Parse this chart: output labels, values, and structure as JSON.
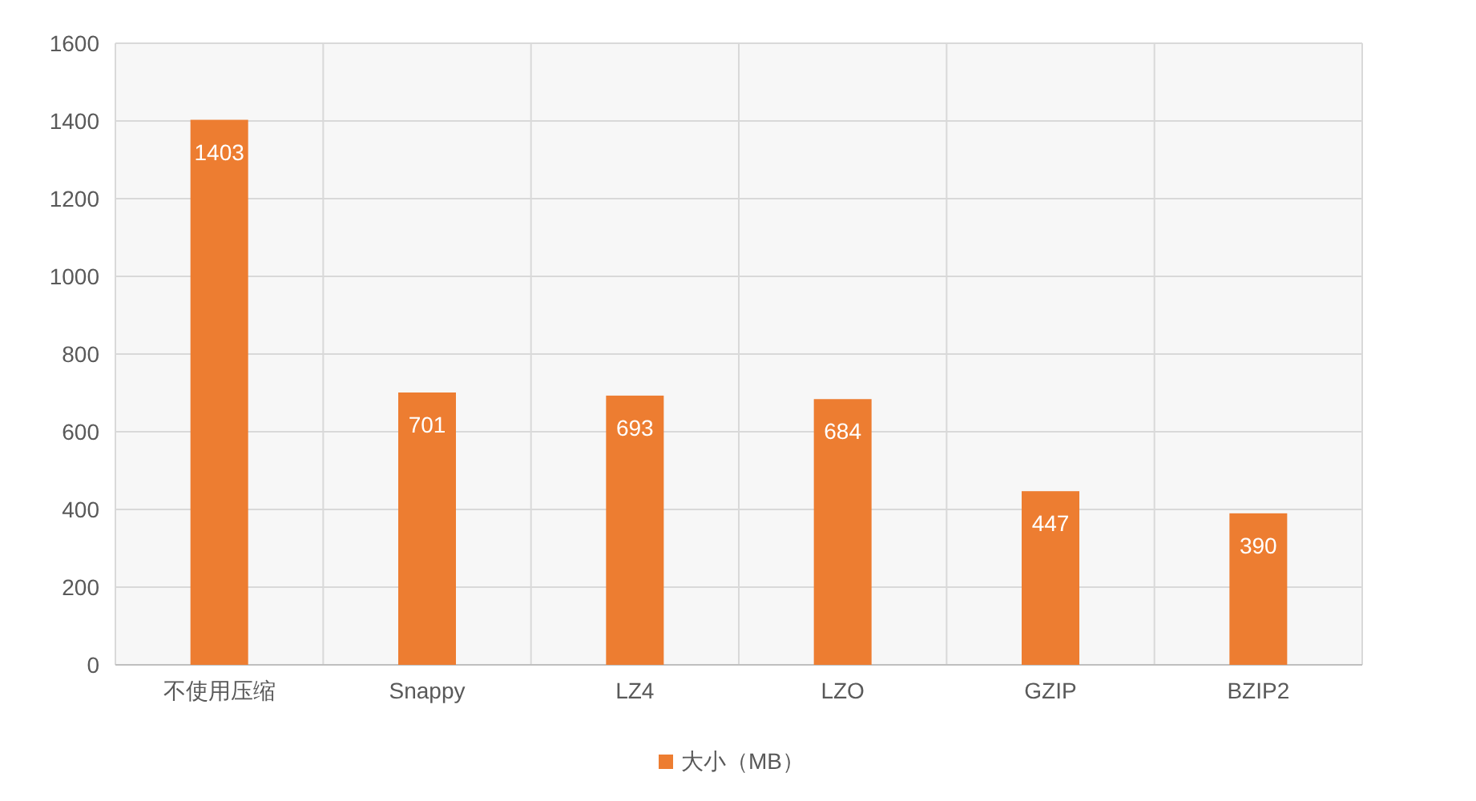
{
  "chart_data": {
    "type": "bar",
    "categories": [
      "不使用压缩",
      "Snappy",
      "LZ4",
      "LZO",
      "GZIP",
      "BZIP2"
    ],
    "series": [
      {
        "name": "大小（MB）",
        "color": "#ed7d31",
        "values": [
          1403,
          701,
          693,
          684,
          447,
          390
        ]
      }
    ],
    "ylim": [
      0,
      1600
    ],
    "yticks": [
      0,
      200,
      400,
      600,
      800,
      1000,
      1200,
      1400,
      1600
    ],
    "grid": true,
    "legend": "bottom",
    "data_labels": true
  }
}
